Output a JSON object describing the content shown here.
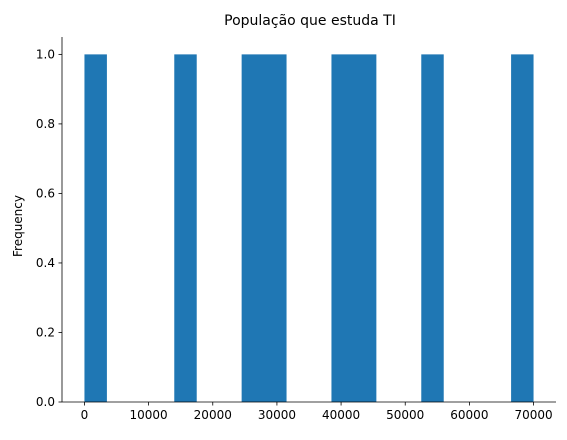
{
  "chart_data": {
    "type": "bar",
    "title": "População que estuda TI",
    "xlabel": "",
    "ylabel": "Frequency",
    "xlim": [
      -3500,
      73500
    ],
    "ylim": [
      0,
      1.05
    ],
    "x_ticks": [
      0,
      10000,
      20000,
      30000,
      40000,
      50000,
      60000,
      70000
    ],
    "y_ticks": [
      0.0,
      0.2,
      0.4,
      0.6,
      0.8,
      1.0
    ],
    "y_tick_labels": [
      "0.0",
      "0.2",
      "0.4",
      "0.6",
      "0.8",
      "1.0"
    ],
    "bins": [
      {
        "x0": 0,
        "x1": 3500,
        "value": 1
      },
      {
        "x0": 14000,
        "x1": 17500,
        "value": 1
      },
      {
        "x0": 24500,
        "x1": 31500,
        "value": 1
      },
      {
        "x0": 38500,
        "x1": 45500,
        "value": 1
      },
      {
        "x0": 52500,
        "x1": 56000,
        "value": 1
      },
      {
        "x0": 66500,
        "x1": 70000,
        "value": 1
      }
    ],
    "bar_color": "#1f77b4",
    "grid": false,
    "legend": "none"
  }
}
